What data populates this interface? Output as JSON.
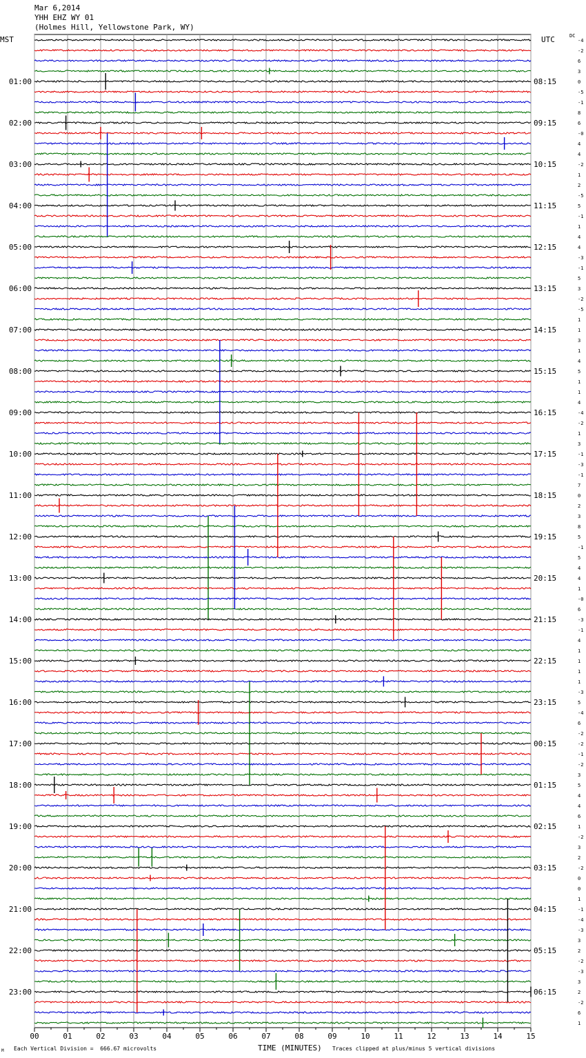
{
  "header": {
    "line1": "Mar 6,2014",
    "line2": "YHH EHZ WY 01",
    "line3": "(Holmes Hill, Yellowstone Park, WY)"
  },
  "corners": {
    "left": "MST",
    "right": "UTC",
    "dc": "DC"
  },
  "footer": {
    "mark": "M",
    "left": "Each Vertical Division =  666.67 microvolts",
    "xlabel": "TIME (MINUTES)",
    "right": "Traces clipped at plus/minus 5 vertical divisions"
  },
  "colors": {
    "trace_cycle": [
      "#000000",
      "#e00000",
      "#0000d0",
      "#007000"
    ],
    "grid": "#9a9a9a"
  },
  "chart_data": {
    "type": "line",
    "xlabel": "TIME (MINUTES)",
    "xlim": [
      0,
      15
    ],
    "x_ticks": [
      "00",
      "01",
      "02",
      "03",
      "04",
      "05",
      "06",
      "07",
      "08",
      "09",
      "10",
      "11",
      "12",
      "13",
      "14",
      "15"
    ],
    "left_hour_labels": [
      "01:00",
      "02:00",
      "03:00",
      "04:00",
      "05:00",
      "06:00",
      "07:00",
      "08:00",
      "09:00",
      "10:00",
      "11:00",
      "12:00",
      "13:00",
      "14:00",
      "15:00",
      "16:00",
      "17:00",
      "18:00",
      "19:00",
      "20:00",
      "21:00",
      "22:00",
      "23:00"
    ],
    "right_hour_labels": [
      "08:15",
      "09:15",
      "10:15",
      "11:15",
      "12:15",
      "13:15",
      "14:15",
      "15:15",
      "16:15",
      "17:15",
      "18:15",
      "19:15",
      "20:15",
      "21:15",
      "22:15",
      "23:15",
      "00:15",
      "01:15",
      "02:15",
      "03:15",
      "04:15",
      "05:15",
      "06:15"
    ],
    "dc_offsets": [
      "-4",
      "-2",
      "6",
      "3",
      "0",
      "-5",
      "-1",
      "8",
      "6",
      "-0",
      "4",
      "4",
      "-2",
      "1",
      "2",
      "-5",
      "5",
      "-1",
      "1",
      "4",
      "4",
      "-3",
      "-1",
      "5",
      "3",
      "-2",
      "-5",
      "1",
      "1",
      "3",
      "1",
      "4",
      "5",
      "1",
      "1",
      "4",
      "-4",
      "-2",
      "1",
      "3",
      "-1",
      "-3",
      "-1",
      "7",
      "0",
      "2",
      "3",
      "8",
      "5",
      "-1",
      "5",
      "4",
      "4",
      "1",
      "-0",
      "6",
      "-3",
      "-1",
      "4",
      "1",
      "1",
      "1",
      "1",
      "-3",
      "5",
      "-4",
      "6",
      "-2",
      "-2",
      "-1",
      "-2",
      "3",
      "5",
      "4",
      "4",
      "6",
      "1",
      "-2",
      "3",
      "2",
      "-2",
      "0",
      "0",
      "1",
      "-1",
      "-4",
      "-3",
      "3",
      "2",
      "-2",
      "-3",
      "3",
      "2",
      "-2",
      "6",
      "1"
    ],
    "traces_per_hour": 4,
    "trace_count": 96,
    "events": [
      {
        "trace": 3,
        "minute": 7.1,
        "amp": 0.3
      },
      {
        "trace": 4,
        "minute": 2.15,
        "amp": 0.8
      },
      {
        "trace": 6,
        "minute": 3.05,
        "amp": 0.9
      },
      {
        "trace": 8,
        "minute": 0.95,
        "amp": 0.7
      },
      {
        "trace": 9,
        "minute": 2.0,
        "amp": 0.6
      },
      {
        "trace": 9,
        "minute": 5.05,
        "amp": 0.6
      },
      {
        "trace": 10,
        "minute": 14.2,
        "amp": 0.6
      },
      {
        "trace": 12,
        "minute": 1.4,
        "amp": 0.3
      },
      {
        "trace": 13,
        "minute": 1.65,
        "amp": 0.7
      },
      {
        "trace": 14,
        "minute": 2.2,
        "amp": 5
      },
      {
        "trace": 16,
        "minute": 4.25,
        "amp": 0.5
      },
      {
        "trace": 20,
        "minute": 7.7,
        "amp": 0.6
      },
      {
        "trace": 22,
        "minute": 2.95,
        "amp": 0.6
      },
      {
        "trace": 21,
        "minute": 8.95,
        "amp": 1.2
      },
      {
        "trace": 25,
        "minute": 11.6,
        "amp": 0.8
      },
      {
        "trace": 31,
        "minute": 5.95,
        "amp": 0.6
      },
      {
        "trace": 32,
        "minute": 9.25,
        "amp": 0.5
      },
      {
        "trace": 34,
        "minute": 5.6,
        "amp": 5
      },
      {
        "trace": 40,
        "minute": 8.1,
        "amp": 0.3
      },
      {
        "trace": 41,
        "minute": 9.8,
        "amp": 5
      },
      {
        "trace": 41,
        "minute": 11.55,
        "amp": 5
      },
      {
        "trace": 45,
        "minute": 0.75,
        "amp": 0.7
      },
      {
        "trace": 45,
        "minute": 7.35,
        "amp": 5
      },
      {
        "trace": 48,
        "minute": 12.2,
        "amp": 0.5
      },
      {
        "trace": 50,
        "minute": 6.05,
        "amp": 5
      },
      {
        "trace": 50,
        "minute": 6.45,
        "amp": 0.8
      },
      {
        "trace": 51,
        "minute": 5.25,
        "amp": 5
      },
      {
        "trace": 52,
        "minute": 2.1,
        "amp": 0.5
      },
      {
        "trace": 53,
        "minute": 12.3,
        "amp": 3
      },
      {
        "trace": 53,
        "minute": 10.85,
        "amp": 5
      },
      {
        "trace": 56,
        "minute": 9.1,
        "amp": 0.4
      },
      {
        "trace": 60,
        "minute": 3.05,
        "amp": 0.4
      },
      {
        "trace": 62,
        "minute": 10.55,
        "amp": 0.5
      },
      {
        "trace": 64,
        "minute": 11.2,
        "amp": 0.5
      },
      {
        "trace": 65,
        "minute": 4.95,
        "amp": 1.2
      },
      {
        "trace": 67,
        "minute": 6.5,
        "amp": 5
      },
      {
        "trace": 69,
        "minute": 13.5,
        "amp": 2
      },
      {
        "trace": 73,
        "minute": 10.35,
        "amp": 0.7
      },
      {
        "trace": 72,
        "minute": 0.6,
        "amp": 0.8
      },
      {
        "trace": 73,
        "minute": 0.95,
        "amp": 0.4
      },
      {
        "trace": 73,
        "minute": 2.4,
        "amp": 0.8
      },
      {
        "trace": 77,
        "minute": 12.5,
        "amp": 0.6
      },
      {
        "trace": 79,
        "minute": 3.15,
        "amp": 0.9
      },
      {
        "trace": 79,
        "minute": 3.55,
        "amp": 0.9
      },
      {
        "trace": 80,
        "minute": 4.6,
        "amp": 0.3
      },
      {
        "trace": 81,
        "minute": 3.5,
        "amp": 0.3
      },
      {
        "trace": 81,
        "minute": 10.6,
        "amp": 5
      },
      {
        "trace": 83,
        "minute": 10.1,
        "amp": 0.3
      },
      {
        "trace": 86,
        "minute": 5.1,
        "amp": 0.6
      },
      {
        "trace": 87,
        "minute": 4.05,
        "amp": 0.7
      },
      {
        "trace": 87,
        "minute": 6.2,
        "amp": 3
      },
      {
        "trace": 87,
        "minute": 12.7,
        "amp": 0.6
      },
      {
        "trace": 88,
        "minute": 14.3,
        "amp": 5
      },
      {
        "trace": 89,
        "minute": 3.1,
        "amp": 5
      },
      {
        "trace": 91,
        "minute": 7.3,
        "amp": 0.8
      },
      {
        "trace": 92,
        "minute": 15.0,
        "amp": 0.5
      },
      {
        "trace": 94,
        "minute": 3.9,
        "amp": 0.3
      },
      {
        "trace": 95,
        "minute": 13.55,
        "amp": 0.5
      }
    ]
  }
}
